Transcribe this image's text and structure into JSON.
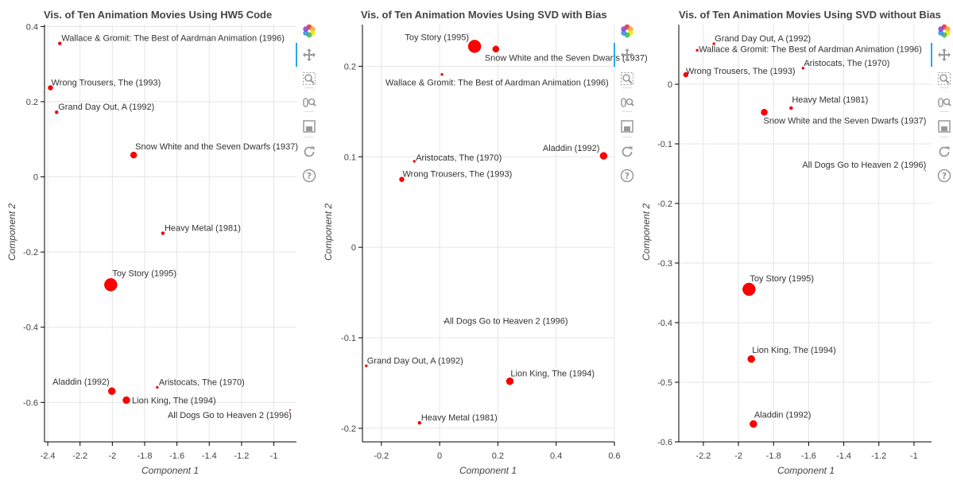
{
  "chart_data": [
    {
      "type": "scatter",
      "title": "Vis. of Ten Animation Movies Using HW5 Code",
      "xlabel": "Component 1",
      "ylabel": "Component 2",
      "xlim": [
        -2.42,
        -0.86
      ],
      "ylim": [
        -0.705,
        0.405
      ],
      "xticks": [
        -2.4,
        -2.2,
        -2.0,
        -1.8,
        -1.6,
        -1.4,
        -1.2,
        -1.0
      ],
      "xtick_labels": [
        "-2.4",
        "-2.2",
        "-2",
        "-1.8",
        "-1.6",
        "-1.4",
        "-1.2",
        "-1"
      ],
      "yticks": [
        -0.6,
        -0.4,
        -0.2,
        0,
        0.2,
        0.4
      ],
      "ytick_labels": [
        "-0.6",
        "-0.4",
        "-0.2",
        "0",
        "0.2",
        "0.4"
      ],
      "grid": true,
      "points": [
        {
          "label": "Wallace & Gromit: The Best of Aardman Animation (1996)",
          "x": -2.325,
          "y": 0.355,
          "size": 2
        },
        {
          "label": "Wrong Trousers, The (1993)",
          "x": -2.383,
          "y": 0.237,
          "size": 3
        },
        {
          "label": "Grand Day Out, A (1992)",
          "x": -2.345,
          "y": 0.172,
          "size": 2
        },
        {
          "label": "Snow White and the Seven Dwarfs (1937)",
          "x": -1.868,
          "y": 0.058,
          "size": 4
        },
        {
          "label": "Heavy Metal (1981)",
          "x": -1.687,
          "y": -0.15,
          "size": 2
        },
        {
          "label": "Toy Story (1995)",
          "x": -2.01,
          "y": -0.287,
          "size": 8
        },
        {
          "label": "Aladdin (1992)",
          "x": -2.003,
          "y": -0.57,
          "size": 4.5
        },
        {
          "label": "Aristocats, The (1970)",
          "x": -1.722,
          "y": -0.56,
          "size": 1.5
        },
        {
          "label": "Lion King, The (1994)",
          "x": -1.913,
          "y": -0.594,
          "size": 4.5
        },
        {
          "label": "All Dogs Go to Heaven 2 (1996)",
          "x": -0.9,
          "y": -0.62,
          "size": 0.8
        }
      ]
    },
    {
      "type": "scatter",
      "title": "Vis. of Ten Animation Movies Using SVD with Bias",
      "xlabel": "Component 1",
      "ylabel": "Component 2",
      "xlim": [
        -0.265,
        0.6
      ],
      "ylim": [
        -0.215,
        0.246
      ],
      "xticks": [
        -0.2,
        0,
        0.2,
        0.4,
        0.6
      ],
      "xtick_labels": [
        "-0.2",
        "0",
        "0.2",
        "0.4",
        "0.6"
      ],
      "yticks": [
        -0.2,
        -0.1,
        0,
        0.1,
        0.2
      ],
      "ytick_labels": [
        "-0.2",
        "-0.1",
        "0",
        "0.1",
        "0.2"
      ],
      "grid": true,
      "points": [
        {
          "label": "Toy Story (1995)",
          "x": 0.12,
          "y": 0.222,
          "size": 8
        },
        {
          "label": "Snow White and the Seven Dwarfs (1937)",
          "x": 0.193,
          "y": 0.219,
          "size": 4
        },
        {
          "label": "Wallace & Gromit: The Best of Aardman Animation (1996)",
          "x": 0.008,
          "y": 0.191,
          "size": 1.5
        },
        {
          "label": "Aladdin (1992)",
          "x": 0.563,
          "y": 0.101,
          "size": 4.5
        },
        {
          "label": "Aristocats, The (1970)",
          "x": -0.087,
          "y": 0.095,
          "size": 1.5
        },
        {
          "label": "Wrong Trousers, The (1993)",
          "x": -0.13,
          "y": 0.075,
          "size": 3
        },
        {
          "label": "All Dogs Go to Heaven 2 (1996)",
          "x": 0.015,
          "y": -0.082,
          "size": 0.5
        },
        {
          "label": "Grand Day Out, A (1992)",
          "x": -0.252,
          "y": -0.131,
          "size": 1.5
        },
        {
          "label": "Lion King, The (1994)",
          "x": 0.241,
          "y": -0.148,
          "size": 4.5
        },
        {
          "label": "Heavy Metal (1981)",
          "x": -0.069,
          "y": -0.194,
          "size": 2
        }
      ]
    },
    {
      "type": "scatter",
      "title": "Vis. of Ten Animation Movies Using SVD without Bias",
      "xlabel": "Component 1",
      "ylabel": "Component 2",
      "xlim": [
        -2.34,
        -0.9
      ],
      "ylim": [
        -0.6,
        0.1
      ],
      "xticks": [
        -2.2,
        -2.0,
        -1.8,
        -1.6,
        -1.4,
        -1.2,
        -1.0
      ],
      "xtick_labels": [
        "-2.2",
        "-2",
        "-1.8",
        "-1.6",
        "-1.4",
        "-1.2",
        "-1"
      ],
      "yticks": [
        -0.6,
        -0.5,
        -0.4,
        -0.3,
        -0.2,
        -0.1,
        0
      ],
      "ytick_labels": [
        "-0.6",
        "-0.5",
        "-0.4",
        "-0.3",
        "-0.2",
        "-0.1",
        "0"
      ],
      "grid": true,
      "points": [
        {
          "label": "Grand Day Out, A (1992)",
          "x": -2.14,
          "y": 0.068,
          "size": 1.5
        },
        {
          "label": "Wallace & Gromit: The Best of Aardman Animation (1996)",
          "x": -2.235,
          "y": 0.057,
          "size": 1.5
        },
        {
          "label": "Aristocats, The (1970)",
          "x": -1.632,
          "y": 0.027,
          "size": 1.5
        },
        {
          "label": "Wrong Trousers, The (1993)",
          "x": -2.3,
          "y": 0.016,
          "size": 3
        },
        {
          "label": "Heavy Metal (1981)",
          "x": -1.7,
          "y": -0.04,
          "size": 2
        },
        {
          "label": "Snow White and the Seven Dwarfs (1937)",
          "x": -1.853,
          "y": -0.047,
          "size": 4
        },
        {
          "label": "All Dogs Go to Heaven 2 (1996)",
          "x": -0.935,
          "y": -0.145,
          "size": 0.5
        },
        {
          "label": "Toy Story (1995)",
          "x": -1.94,
          "y": -0.344,
          "size": 8
        },
        {
          "label": "Lion King, The (1994)",
          "x": -1.927,
          "y": -0.461,
          "size": 4.5
        },
        {
          "label": "Aladdin (1992)",
          "x": -1.915,
          "y": -0.57,
          "size": 4.5
        }
      ]
    }
  ],
  "colors": {
    "marker": "#ff0000",
    "marker_stroke": "#d40000",
    "grid": "#e5e5e5",
    "text": "#444444",
    "toolbar_active": "#26aae1"
  },
  "toolbar_icons": [
    "bokeh-logo-icon",
    "pan-icon",
    "box-zoom-icon",
    "wheel-zoom-icon",
    "save-icon",
    "reset-icon",
    "help-icon"
  ]
}
